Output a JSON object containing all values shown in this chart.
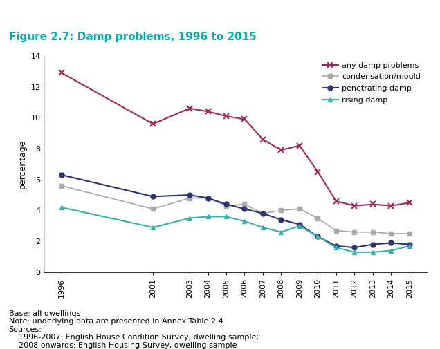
{
  "title": "Figure 2.7: Damp problems, 1996 to 2015",
  "ylabel": "percentage",
  "years": [
    1996,
    2001,
    2003,
    2004,
    2005,
    2006,
    2007,
    2008,
    2009,
    2010,
    2011,
    2012,
    2013,
    2014,
    2015
  ],
  "series": {
    "any damp problems": {
      "values": [
        12.9,
        9.6,
        10.6,
        10.4,
        10.1,
        9.9,
        8.6,
        7.9,
        8.2,
        6.5,
        4.6,
        4.3,
        4.4,
        4.3,
        4.5
      ],
      "color": "#9B2B5A",
      "marker": "x",
      "linewidth": 1.5,
      "markersize": 6,
      "markeredgewidth": 1.5
    },
    "condensation/mould": {
      "values": [
        5.6,
        4.1,
        4.8,
        4.8,
        4.3,
        4.4,
        3.8,
        4.0,
        4.1,
        3.5,
        2.7,
        2.6,
        2.6,
        2.5,
        2.5
      ],
      "color": "#aaaaaa",
      "marker": "s",
      "linewidth": 1.2,
      "markersize": 4,
      "markeredgewidth": 1.0
    },
    "penetrating damp": {
      "values": [
        6.3,
        4.9,
        5.0,
        4.8,
        4.4,
        4.1,
        3.8,
        3.4,
        3.1,
        2.3,
        1.7,
        1.6,
        1.8,
        1.9,
        1.8
      ],
      "color": "#2C3470",
      "marker": "o",
      "linewidth": 1.5,
      "markersize": 5,
      "markeredgewidth": 1.0
    },
    "rising damp": {
      "values": [
        4.2,
        2.9,
        3.5,
        3.6,
        3.6,
        3.3,
        2.9,
        2.6,
        3.0,
        2.3,
        1.6,
        1.3,
        1.3,
        1.4,
        1.7
      ],
      "color": "#3AAFA9",
      "marker": "^",
      "linewidth": 1.5,
      "markersize": 5,
      "markeredgewidth": 1.0
    }
  },
  "ylim": [
    0,
    14
  ],
  "yticks": [
    0,
    2,
    4,
    6,
    8,
    10,
    12,
    14
  ],
  "footnote_lines": [
    "Base: all dwellings",
    "Note: underlying data are presented in Annex Table 2.4",
    "Sources:",
    "    1996-2007: English House Condition Survey, dwelling sample;",
    "    2008 onwards: English Housing Survey, dwelling sample"
  ],
  "title_color": "#00AAAA",
  "background_color": "#ffffff",
  "title_fontsize": 11,
  "footnote_fontsize": 8,
  "axis_fontsize": 8,
  "ylabel_fontsize": 9
}
